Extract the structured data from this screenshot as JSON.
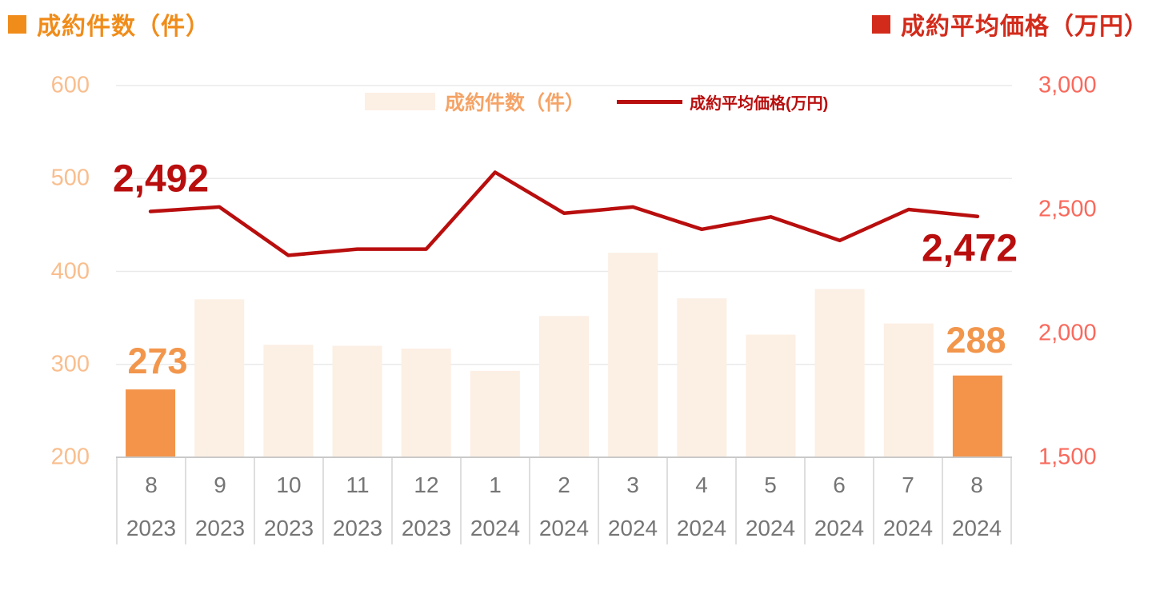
{
  "header": {
    "left_title": "成約件数（件）",
    "right_title": "成約平均価格（万円）"
  },
  "colors": {
    "title_orange": "#F08C1A",
    "title_red": "#D32B1B",
    "left_tick": "#F9BE8E",
    "right_tick": "#F9695C",
    "bar_light": "#FCEFE4",
    "bar_solid": "#F3944A",
    "bar_label": "#F2964C",
    "line": "#B90E0E",
    "line_label": "#B90E0E",
    "legend_orange": "#F5A366",
    "x_text": "#757575",
    "gridline": "#EAEAEA",
    "axis_line": "#C9C9C9"
  },
  "chart_data": {
    "type": "bar+line combo",
    "categories_month": [
      "8",
      "9",
      "10",
      "11",
      "12",
      "1",
      "2",
      "3",
      "4",
      "5",
      "6",
      "7",
      "8"
    ],
    "categories_year": [
      "2023",
      "2023",
      "2023",
      "2023",
      "2023",
      "2024",
      "2024",
      "2024",
      "2024",
      "2024",
      "2024",
      "2024",
      "2024"
    ],
    "series": [
      {
        "name": "成約件数（件）",
        "type": "bar",
        "axis": "left",
        "values": [
          273,
          370,
          321,
          320,
          317,
          293,
          352,
          420,
          371,
          332,
          381,
          344,
          288
        ],
        "highlighted_indices": [
          0,
          12
        ]
      },
      {
        "name": "成約平均価格(万円)",
        "type": "line",
        "axis": "right",
        "values": [
          2492,
          2510,
          2315,
          2340,
          2340,
          2650,
          2485,
          2510,
          2420,
          2470,
          2375,
          2500,
          2472
        ]
      }
    ],
    "left_axis": {
      "title": "成約件数（件）",
      "range": [
        200,
        600
      ],
      "ticks": [
        {
          "label": "600",
          "value": 600
        },
        {
          "label": "500",
          "value": 500
        },
        {
          "label": "400",
          "value": 400
        },
        {
          "label": "300",
          "value": 300
        },
        {
          "label": "200",
          "value": 200
        }
      ]
    },
    "right_axis": {
      "title": "成約平均価格（万円）",
      "range": [
        1500,
        3000
      ],
      "ticks": [
        {
          "label": "3,000",
          "value": 3000
        },
        {
          "label": "2,500",
          "value": 2500
        },
        {
          "label": "2,000",
          "value": 2000
        },
        {
          "label": "1,500",
          "value": 1500
        }
      ]
    },
    "legend": {
      "bar": "成約件数（件）",
      "line": "成約平均価格(万円)"
    },
    "annotations": {
      "line_first": "2,492",
      "line_last": "2,472",
      "bar_first": "273",
      "bar_last": "288"
    },
    "grid": "horizontal"
  }
}
